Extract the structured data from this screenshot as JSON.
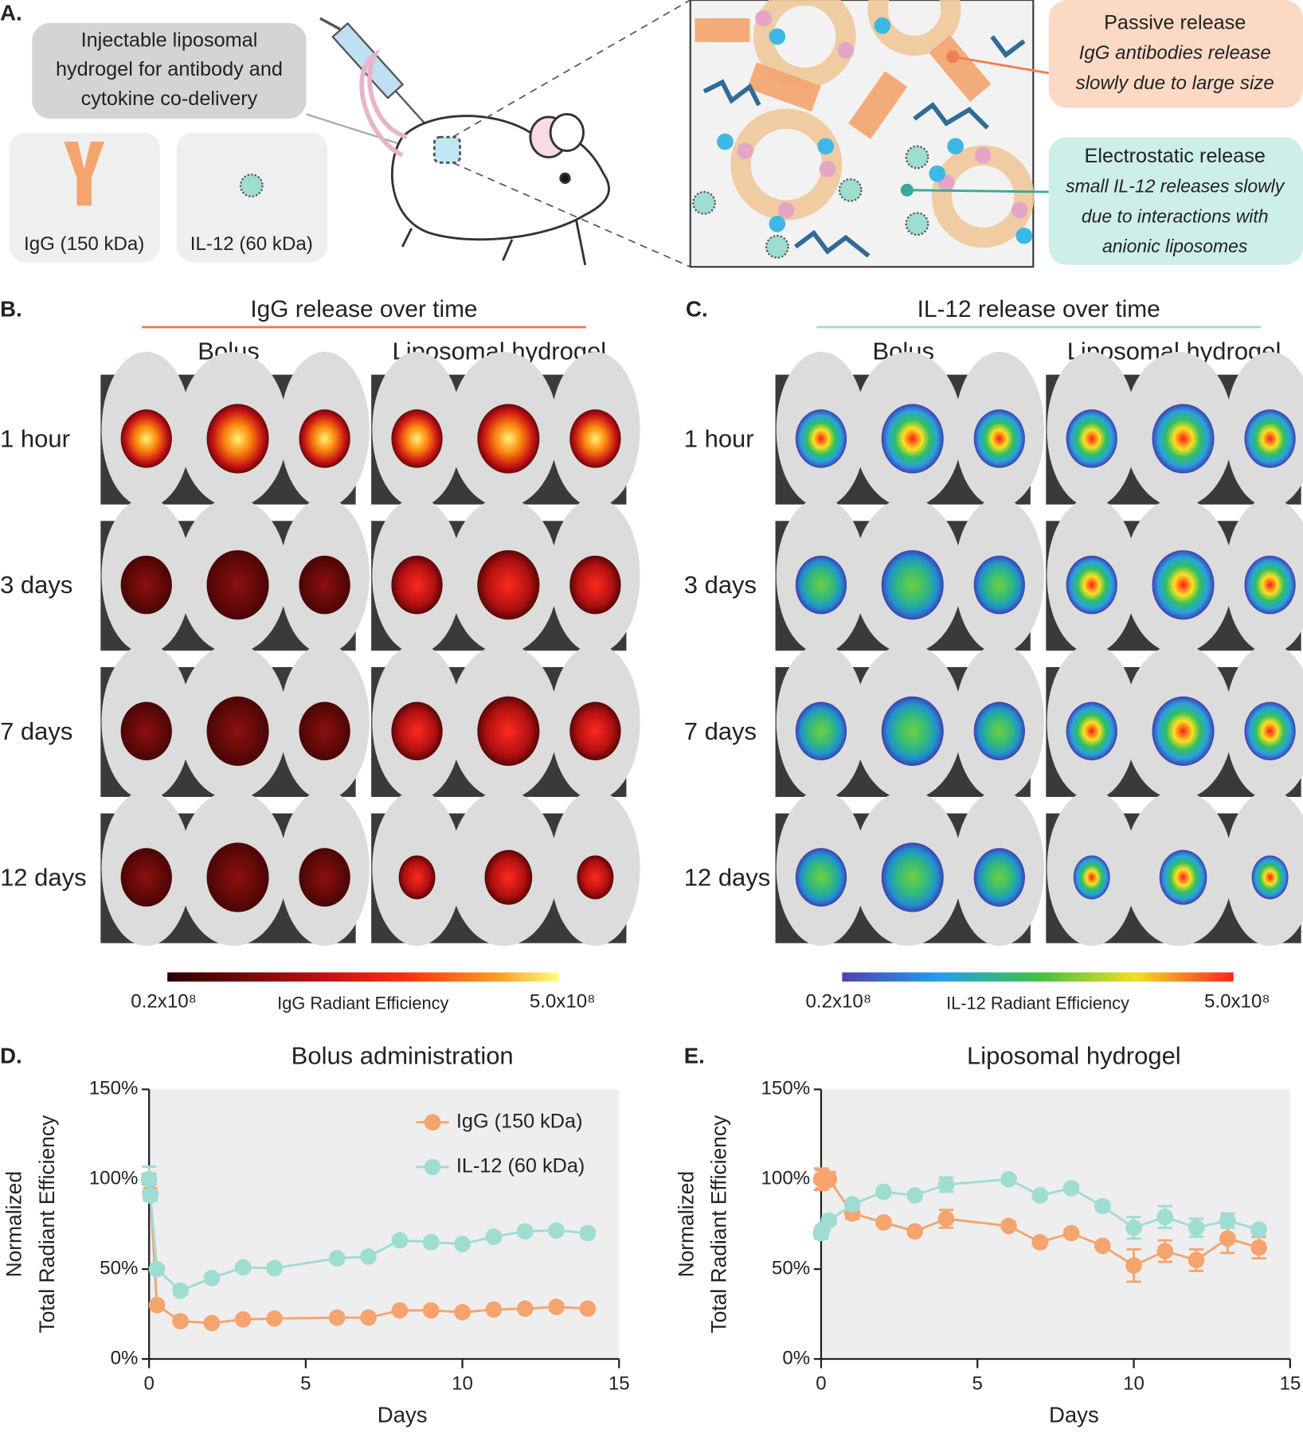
{
  "panels": {
    "a": {
      "label": "A.",
      "intro": [
        "Injectable liposomal",
        "hydrogel for antibody and",
        "cytokine co-delivery"
      ],
      "igg": "IgG (150 kDa)",
      "il12": "IL-12 (60 kDa)",
      "passive_title": "Passive release",
      "passive_text": [
        "IgG antibodies release",
        "slowly due to large size"
      ],
      "electro_title": "Electrostatic release",
      "electro_text": [
        "small IL-12 releases slowly",
        "due to interactions with",
        "anionic liposomes"
      ]
    },
    "b": {
      "label": "B.",
      "title": "IgG release over time",
      "columns": [
        "Bolus",
        "Liposomal hydrogel"
      ],
      "rows": [
        "1 hour",
        "3 days",
        "7 days",
        "12 days"
      ],
      "scale_min": "0.2x10⁸",
      "scale_title": "IgG Radiant Efficiency",
      "scale_max": "5.0x10⁸"
    },
    "c": {
      "label": "C.",
      "title": "IL-12 release over time",
      "columns": [
        "Bolus",
        "Liposomal hydrogel"
      ],
      "rows": [
        "1 hour",
        "3 days",
        "7 days",
        "12 days"
      ],
      "scale_min": "0.2x10⁸",
      "scale_title": "IL-12 Radiant Efficiency",
      "scale_max": "5.0x10⁸"
    }
  },
  "chart_data": [
    {
      "type": "line",
      "label": "D.",
      "title": "Bolus administration",
      "y_label": [
        "Normalized",
        "Total Radiant Efficiency"
      ],
      "x_label": "Days",
      "x": [
        0,
        0.04,
        0.25,
        1,
        2,
        3,
        4,
        6,
        7,
        8,
        9,
        10,
        11,
        12,
        13,
        14
      ],
      "series": [
        {
          "name": "IgG (150 kDa)",
          "color": "#f5a46e",
          "values": [
            100,
            92,
            30,
            21,
            20,
            22,
            22.5,
            23,
            23,
            27,
            27,
            26,
            27.5,
            28,
            29,
            28
          ],
          "errors": [
            3,
            3,
            2,
            1,
            1,
            1,
            1,
            1,
            1,
            1,
            1,
            1,
            1,
            1,
            1,
            1
          ]
        },
        {
          "name": "IL-12 (60 kDa)",
          "color": "#9fdcd2",
          "values": [
            100,
            91,
            50,
            38,
            45,
            51,
            50.5,
            56,
            57,
            66,
            65,
            64,
            68,
            71,
            71.5,
            70
          ],
          "errors": [
            7,
            3,
            2,
            2,
            2,
            2,
            2,
            2,
            2,
            2,
            2,
            2,
            2,
            2,
            2,
            2
          ]
        }
      ],
      "xlim": [
        0,
        15
      ],
      "xticks": [
        0,
        5,
        10,
        15
      ],
      "ylim": [
        0,
        150
      ],
      "yticks": [
        {
          "value": 0,
          "label": "0%"
        },
        {
          "value": 50,
          "label": "50%"
        },
        {
          "value": 100,
          "label": "100%"
        },
        {
          "value": 150,
          "label": "150%"
        }
      ],
      "legend": "upper right"
    },
    {
      "type": "line",
      "label": "E.",
      "title": "Liposomal hydrogel",
      "y_label": [
        "Normalized",
        "Total Radiant Efficiency"
      ],
      "x_label": "Days",
      "x": [
        0,
        0.04,
        0.25,
        1,
        2,
        3,
        4,
        6,
        7,
        8,
        9,
        10,
        11,
        12,
        13,
        14
      ],
      "series": [
        {
          "color": "#f5a46e",
          "values": [
            100,
            100,
            100,
            81,
            76,
            71,
            78,
            74,
            65,
            70,
            63,
            52,
            60,
            55,
            67,
            62
          ],
          "errors": [
            6,
            5,
            4,
            3,
            2,
            2,
            5,
            2,
            2,
            2,
            2,
            9,
            6,
            6,
            8,
            6
          ]
        },
        {
          "color": "#9fdcd2",
          "values": [
            70,
            72,
            77,
            86,
            93,
            91,
            97,
            100,
            91,
            95,
            85,
            73,
            79,
            73,
            77,
            72
          ],
          "errors": [
            3,
            2,
            2,
            2,
            2,
            2,
            4,
            2,
            2,
            2,
            2,
            6,
            6,
            5,
            4,
            2
          ]
        }
      ],
      "xlim": [
        0,
        15
      ],
      "xticks": [
        0,
        5,
        10,
        15
      ],
      "ylim": [
        0,
        150
      ],
      "yticks": [
        {
          "value": 0,
          "label": "0%"
        },
        {
          "value": 50,
          "label": "50%"
        },
        {
          "value": 100,
          "label": "100%"
        },
        {
          "value": 150,
          "label": "150%"
        }
      ]
    }
  ]
}
